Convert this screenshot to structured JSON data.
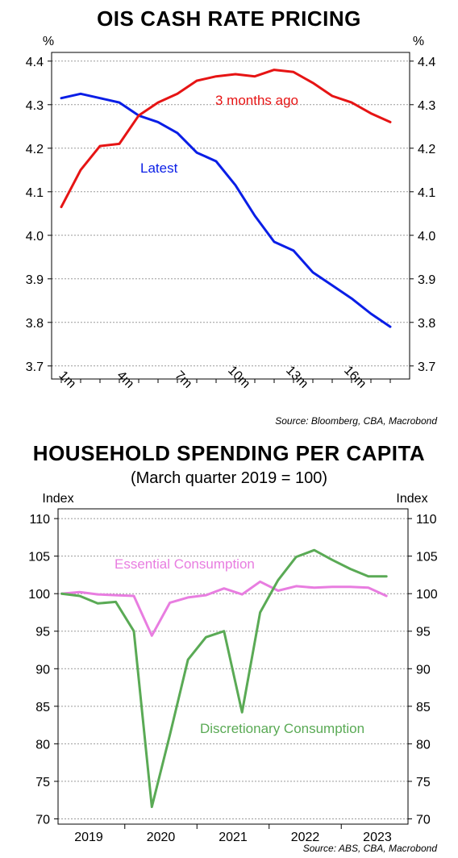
{
  "chart_data": [
    {
      "type": "line",
      "title": "OIS CASH RATE PRICING",
      "source": "Source: Bloomberg, CBA, Macrobond",
      "unit_left": "%",
      "unit_right": "%",
      "x_tick_labels": [
        "1m",
        "4m",
        "7m",
        "10m",
        "13m",
        "16m"
      ],
      "x_tick_positions": [
        1,
        4,
        7,
        10,
        13,
        16
      ],
      "xlim": [
        0.5,
        19
      ],
      "ylim": [
        3.67,
        4.42
      ],
      "y_ticks": [
        "3.7",
        "3.8",
        "3.9",
        "4.0",
        "4.1",
        "4.2",
        "4.3",
        "4.4"
      ],
      "grid": true,
      "series": [
        {
          "name": "Latest",
          "color": "#0a1ee6",
          "x": [
            1,
            2,
            3,
            4,
            5,
            6,
            7,
            8,
            9,
            10,
            11,
            12,
            13,
            14,
            15,
            16,
            17,
            18
          ],
          "values": [
            4.315,
            4.325,
            4.315,
            4.305,
            4.275,
            4.26,
            4.235,
            4.19,
            4.17,
            4.115,
            4.045,
            3.985,
            3.965,
            3.915,
            3.885,
            3.855,
            3.82,
            3.79
          ]
        },
        {
          "name": "3 months ago",
          "color": "#e61414",
          "x": [
            1,
            2,
            3,
            4,
            5,
            6,
            7,
            8,
            9,
            10,
            11,
            12,
            13,
            14,
            15,
            16,
            17,
            18
          ],
          "values": [
            4.065,
            4.15,
            4.205,
            4.21,
            4.275,
            4.305,
            4.325,
            4.355,
            4.365,
            4.37,
            4.365,
            4.38,
            4.375,
            4.35,
            4.32,
            4.305,
            4.28,
            4.26
          ]
        }
      ]
    },
    {
      "type": "line",
      "title": "HOUSEHOLD SPENDING PER CAPITA",
      "subtitle": "(March quarter 2019 = 100)",
      "source": "Source: ABS, CBA, Macrobond",
      "unit_left": "Index",
      "unit_right": "Index",
      "x_tick_labels": [
        "2019",
        "2020",
        "2021",
        "2022",
        "2023"
      ],
      "xlim": [
        2018.95,
        2023.8
      ],
      "ylim": [
        69.3,
        111.3
      ],
      "y_ticks": [
        "70",
        "75",
        "80",
        "85",
        "90",
        "95",
        "100",
        "105",
        "110"
      ],
      "grid": true,
      "series": [
        {
          "name": "Essential Consumption",
          "color": "#e87de0",
          "x": [
            2019.0,
            2019.25,
            2019.5,
            2019.75,
            2020.0,
            2020.25,
            2020.5,
            2020.75,
            2021.0,
            2021.25,
            2021.5,
            2021.75,
            2022.0,
            2022.25,
            2022.5,
            2022.75,
            2023.0,
            2023.25,
            2023.5
          ],
          "values": [
            100.0,
            100.2,
            99.9,
            99.8,
            99.7,
            94.4,
            98.8,
            99.5,
            99.8,
            100.7,
            99.9,
            101.6,
            100.4,
            101.0,
            100.8,
            100.9,
            100.9,
            100.8,
            99.7
          ]
        },
        {
          "name": "Discretionary Consumption",
          "color": "#5aaa55",
          "x": [
            2019.0,
            2019.25,
            2019.5,
            2019.75,
            2020.0,
            2020.25,
            2020.5,
            2020.75,
            2021.0,
            2021.25,
            2021.5,
            2021.75,
            2022.0,
            2022.25,
            2022.5,
            2022.75,
            2023.0,
            2023.25,
            2023.5
          ],
          "values": [
            100.0,
            99.7,
            98.7,
            98.9,
            95.0,
            71.6,
            81.2,
            91.2,
            94.2,
            95.0,
            84.2,
            97.5,
            101.8,
            104.9,
            105.8,
            104.5,
            103.3,
            102.3,
            102.3
          ]
        }
      ]
    }
  ]
}
